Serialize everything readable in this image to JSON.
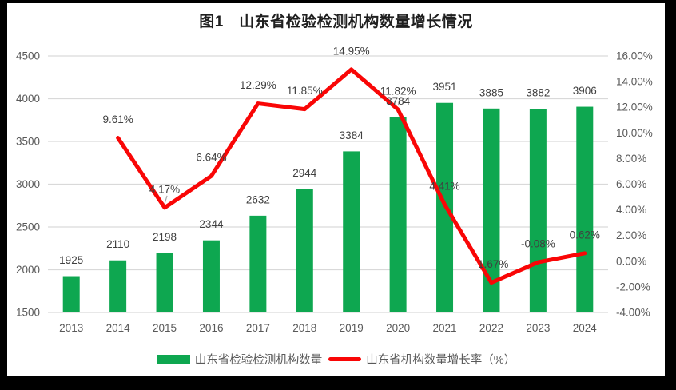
{
  "title": "图1　山东省检验检测机构数量增长情况",
  "legend": {
    "bars_label": "山东省检验检测机构数量",
    "line_label": "山东省机构数量增长率（%）"
  },
  "colors": {
    "bar": "#0EA750",
    "line": "#F90606",
    "grid": "#D9D9D9",
    "axis_text": "#595959",
    "data_label": "#404040",
    "title_text": "#1F1F1F",
    "leader": "#A6A6A6",
    "panel_bg": "#FFFFFF",
    "frame_bg": "#000000"
  },
  "chart_data": {
    "type": "bar",
    "subtype": "combo bar + line, dual axis",
    "title": "图1　山东省检验检测机构数量增长情况",
    "categories": [
      "2013",
      "2014",
      "2015",
      "2016",
      "2017",
      "2018",
      "2019",
      "2020",
      "2021",
      "2022",
      "2023",
      "2024"
    ],
    "series": [
      {
        "name": "山东省检验检测机构数量",
        "type": "bar",
        "axis": "left",
        "values": [
          1925,
          2110,
          2198,
          2344,
          2632,
          2944,
          3384,
          3784,
          3951,
          3885,
          3882,
          3906
        ],
        "labels": [
          "1925",
          "2110",
          "2198",
          "2344",
          "2632",
          "2944",
          "3384",
          "3784",
          "3951",
          "3885",
          "3882",
          "3906"
        ]
      },
      {
        "name": "山东省机构数量增长率（%）",
        "type": "line",
        "axis": "right",
        "values": [
          null,
          9.61,
          4.17,
          6.64,
          12.29,
          11.85,
          14.95,
          11.82,
          4.41,
          -1.67,
          -0.08,
          0.62
        ],
        "labels": [
          "",
          "9.61%",
          "4.17%",
          "6.64%",
          "12.29%",
          "11.85%",
          "14.95%",
          "11.82%",
          "4.41%",
          "-1.67%",
          "-0.08%",
          "0.62%"
        ],
        "leader_label_indices": [
          2,
          7
        ]
      }
    ],
    "left_axis": {
      "min": 1500,
      "max": 4500,
      "step": 500,
      "ticks": [
        "1500",
        "2000",
        "2500",
        "3000",
        "3500",
        "4000",
        "4500"
      ]
    },
    "right_axis": {
      "min": -4,
      "max": 16,
      "step": 2,
      "ticks": [
        "-4.00%",
        "-2.00%",
        "0.00%",
        "2.00%",
        "4.00%",
        "6.00%",
        "8.00%",
        "10.00%",
        "12.00%",
        "14.00%",
        "16.00%"
      ]
    },
    "xlabel": "",
    "ylabel": "",
    "grid": true,
    "legend_position": "bottom"
  }
}
